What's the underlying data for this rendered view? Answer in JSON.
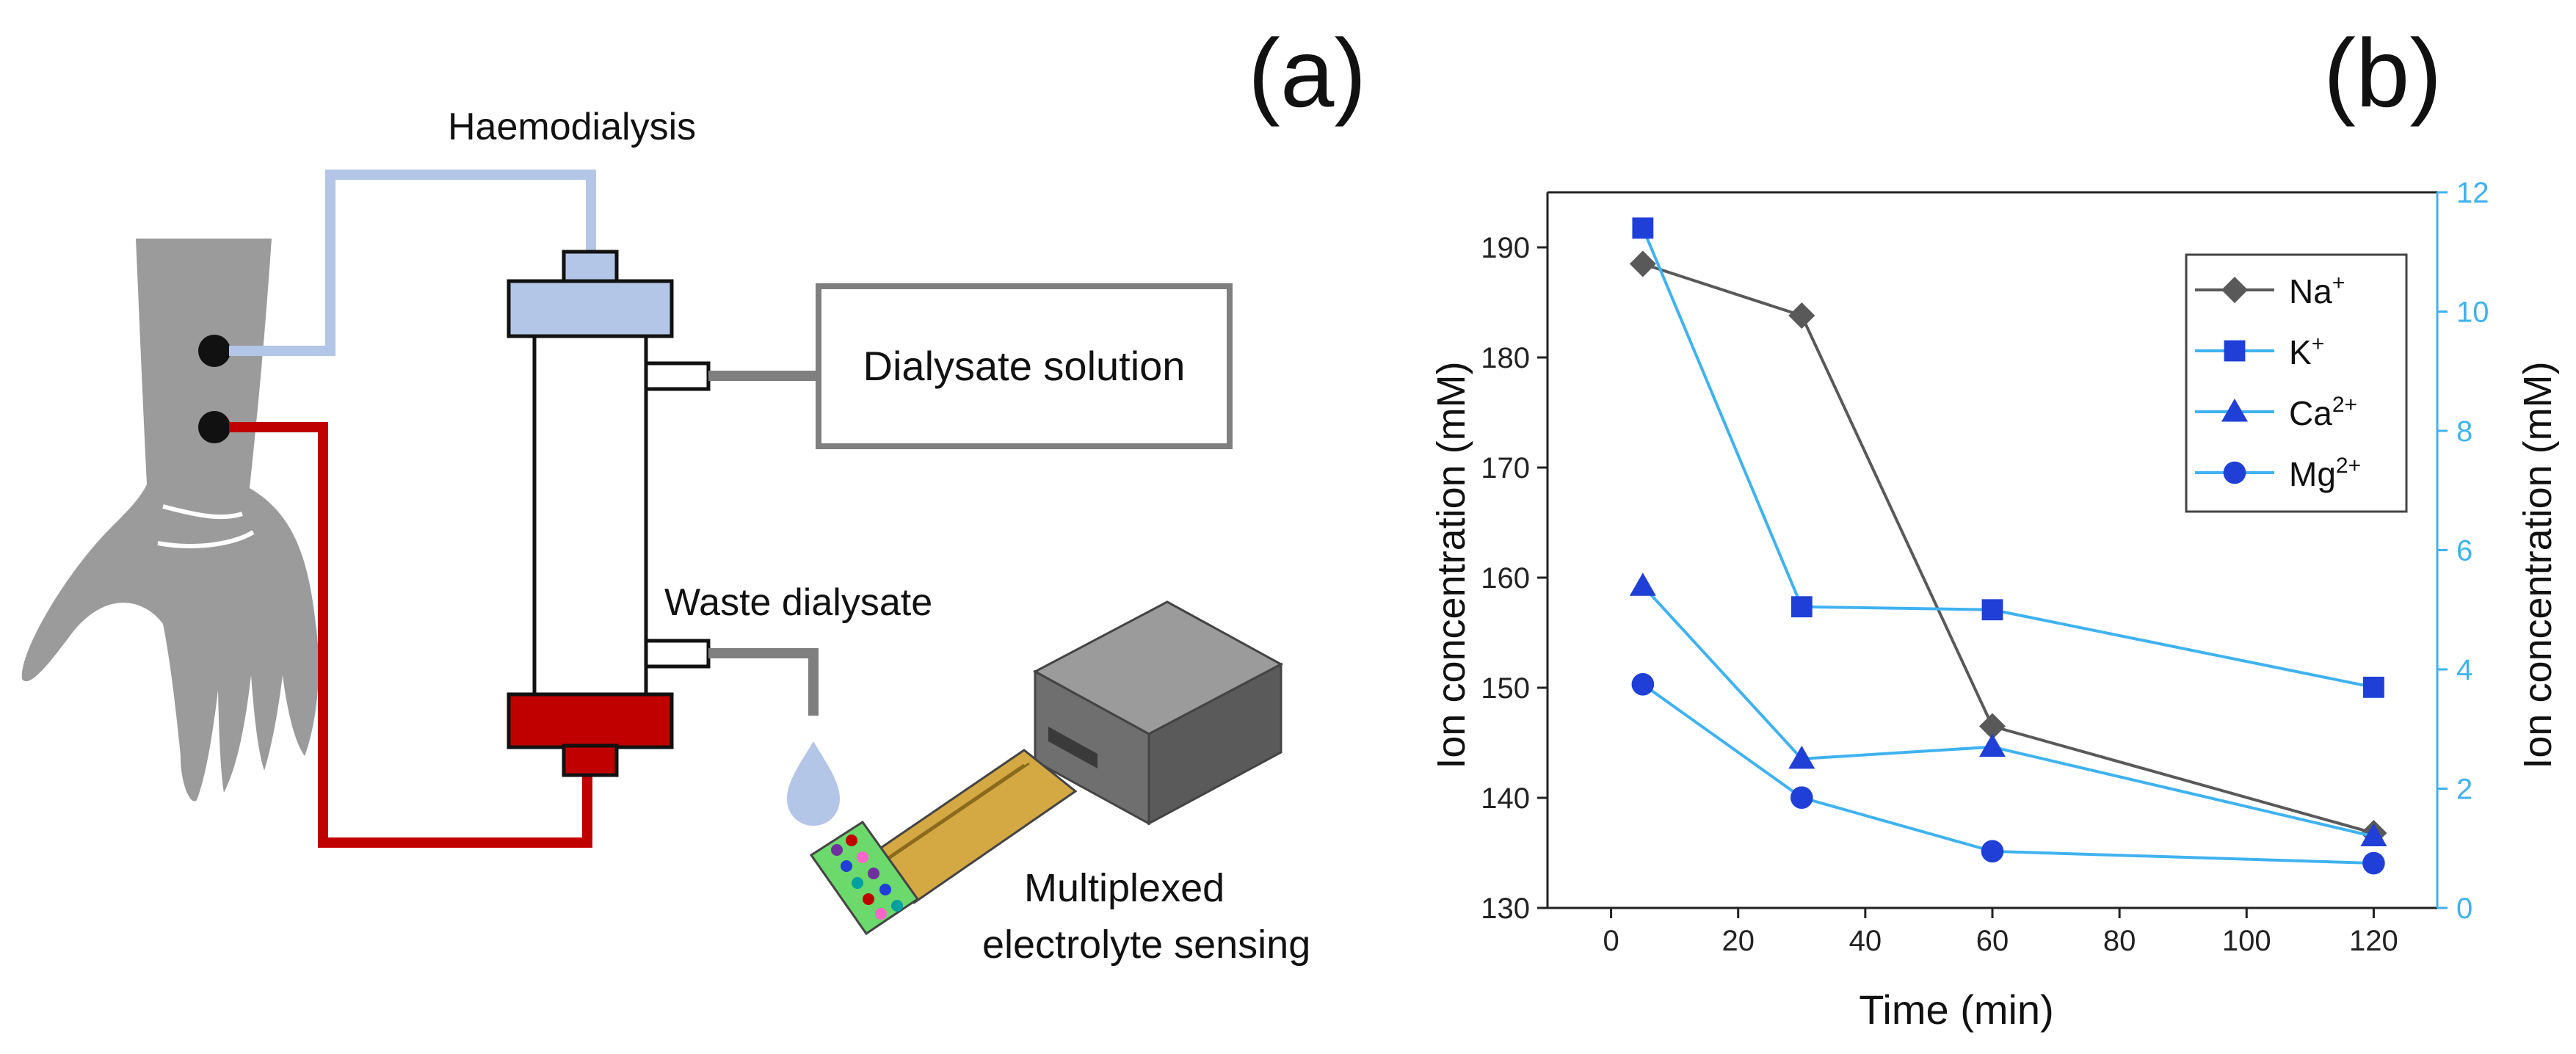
{
  "panel_a": {
    "label": "(a)",
    "haemodialysis_label": "Haemodialysis",
    "dialysate_solution_label": "Dialysate solution",
    "waste_dialysate_label": "Waste dialysate",
    "sensing_label_line1": "Multiplexed",
    "sensing_label_line2": "electrolyte sensing",
    "colors": {
      "arm": "#9b9b9b",
      "blue_tube": "#b4c6e7",
      "red_tube": "#c00000",
      "dialyzer_top": "#b4c6e7",
      "dialyzer_bottom": "#c00000",
      "device_box": "#7f7f7f",
      "sensor_strip": "#d4a843",
      "sensor_tip": "#6bd96b"
    }
  },
  "panel_b": {
    "label": "(b)"
  },
  "chart_data": {
    "type": "line",
    "title": "",
    "xlabel": "Time (min)",
    "ylabel_left": "Ion concentration (mM)",
    "ylabel_right": "Ion concentration (mM)",
    "xlim": [
      -10,
      130
    ],
    "ylim_left": [
      130,
      195
    ],
    "ylim_right": [
      0,
      12
    ],
    "x_ticks": [
      0,
      20,
      40,
      60,
      80,
      100,
      120
    ],
    "y_ticks_left": [
      130,
      140,
      150,
      160,
      170,
      180,
      190
    ],
    "y_ticks_right": [
      0,
      2,
      4,
      6,
      8,
      10,
      12
    ],
    "x_tick_labels": [
      "0",
      "20",
      "40",
      "60",
      "80",
      "100",
      "120"
    ],
    "y_tick_labels_left": [
      "130",
      "140",
      "150",
      "160",
      "170",
      "180",
      "190"
    ],
    "y_tick_labels_right": [
      "0",
      "2",
      "4",
      "6",
      "8",
      "10",
      "12"
    ],
    "legend_position": "top-right",
    "series": [
      {
        "name": "Na",
        "sup": "+",
        "axis": "left",
        "marker": "diamond",
        "color": "#595959",
        "x": [
          5,
          30,
          60,
          120
        ],
        "y": [
          188.5,
          183.8,
          146.5,
          136.8
        ]
      },
      {
        "name": "K",
        "sup": "+",
        "axis": "right",
        "marker": "square",
        "color": "#1f3fd6",
        "line_color": "#3fb2f0",
        "x": [
          5,
          30,
          60,
          120
        ],
        "y": [
          11.4,
          5.05,
          5.0,
          3.7
        ]
      },
      {
        "name": "Ca",
        "sup": "2+",
        "axis": "right",
        "marker": "triangle",
        "color": "#1f3fd6",
        "line_color": "#3fb2f0",
        "x": [
          5,
          30,
          60,
          120
        ],
        "y": [
          5.4,
          2.5,
          2.7,
          1.2
        ]
      },
      {
        "name": "Mg",
        "sup": "2+",
        "axis": "right",
        "marker": "circle",
        "color": "#1f3fd6",
        "line_color": "#3fb2f0",
        "x": [
          5,
          30,
          60,
          120
        ],
        "y": [
          3.75,
          1.85,
          0.95,
          0.75
        ]
      }
    ]
  }
}
